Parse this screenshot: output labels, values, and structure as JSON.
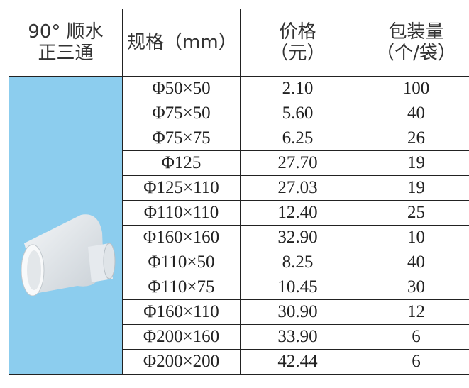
{
  "table": {
    "header": {
      "product": [
        "90° 顺水",
        "正三通"
      ],
      "spec": [
        "规格（mm）"
      ],
      "price": [
        "价格",
        "（元）"
      ],
      "pack": [
        "包装量",
        "（个/袋）"
      ]
    },
    "rows": [
      [
        "Φ50×50",
        "2.10",
        "100"
      ],
      [
        "Φ75×50",
        "5.60",
        "40"
      ],
      [
        "Φ75×75",
        "6.25",
        "26"
      ],
      [
        "Φ125",
        "27.70",
        "19"
      ],
      [
        "Φ125×110",
        "27.03",
        "19"
      ],
      [
        "Φ110×110",
        "12.40",
        "25"
      ],
      [
        "Φ160×160",
        "32.90",
        "10"
      ],
      [
        "Φ110×50",
        "8.25",
        "40"
      ],
      [
        "Φ110×75",
        "10.45",
        "30"
      ],
      [
        "Φ160×110",
        "30.90",
        "12"
      ],
      [
        "Φ200×160",
        "33.90",
        "6"
      ],
      [
        "Φ200×200",
        "42.44",
        "6"
      ]
    ]
  }
}
